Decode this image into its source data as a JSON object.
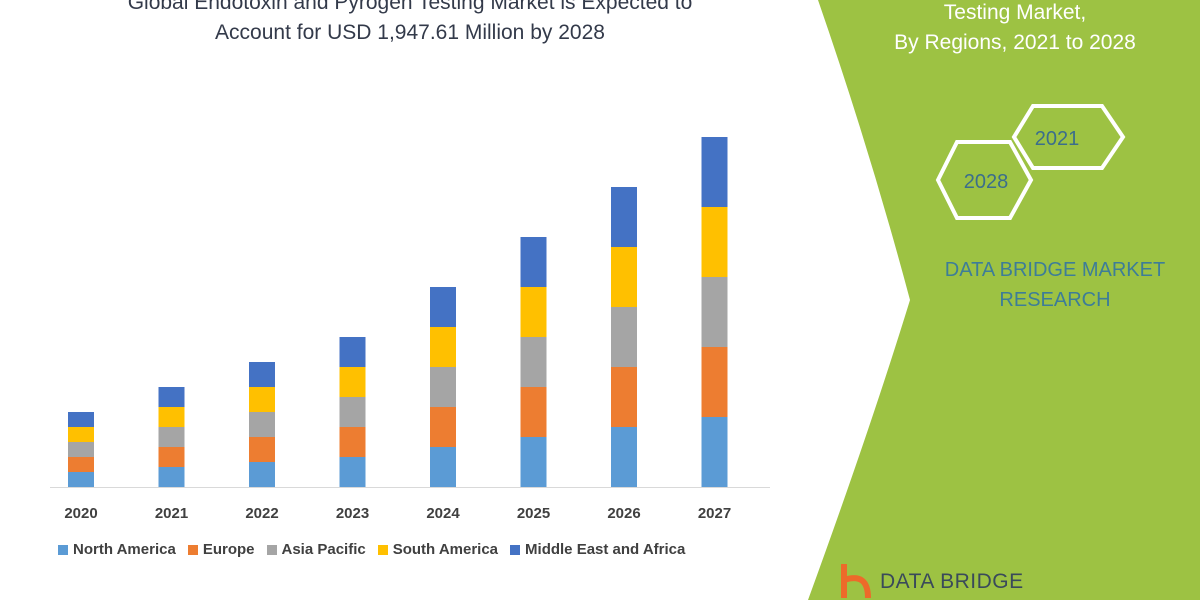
{
  "header": {
    "title_line1": "Global Endotoxin and Pyrogen Testing Market is Expected to",
    "title_line2": "Account for USD 1,947.61 Million by 2028"
  },
  "side_panel": {
    "title_line1": "Testing Market,",
    "title_line2": "By Regions, 2021 to 2028",
    "hex_years": [
      "2021",
      "2028"
    ],
    "brand_line1": "DATA BRIDGE MARKET",
    "brand_line2": "RESEARCH",
    "logo_text": "DATA BRIDGE",
    "panel_color": "#9dc243"
  },
  "chart_data": {
    "type": "bar",
    "stacked": true,
    "categories": [
      "2020",
      "2021",
      "2022",
      "2023",
      "2024",
      "2025",
      "2026",
      "2027"
    ],
    "series": [
      {
        "name": "North America",
        "color": "#5b9bd5",
        "values": [
          15,
          20,
          25,
          30,
          40,
          50,
          60,
          70
        ]
      },
      {
        "name": "Europe",
        "color": "#ed7d31",
        "values": [
          15,
          20,
          25,
          30,
          40,
          50,
          60,
          70
        ]
      },
      {
        "name": "Asia Pacific",
        "color": "#a5a5a5",
        "values": [
          15,
          20,
          25,
          30,
          40,
          50,
          60,
          70
        ]
      },
      {
        "name": "South America",
        "color": "#ffc000",
        "values": [
          15,
          20,
          25,
          30,
          40,
          50,
          60,
          70
        ]
      },
      {
        "name": "Middle East and Africa",
        "color": "#4472c4",
        "values": [
          15,
          20,
          25,
          30,
          40,
          50,
          60,
          70
        ]
      }
    ],
    "y_axis_shown": false,
    "grid": false,
    "legend_position": "bottom"
  }
}
